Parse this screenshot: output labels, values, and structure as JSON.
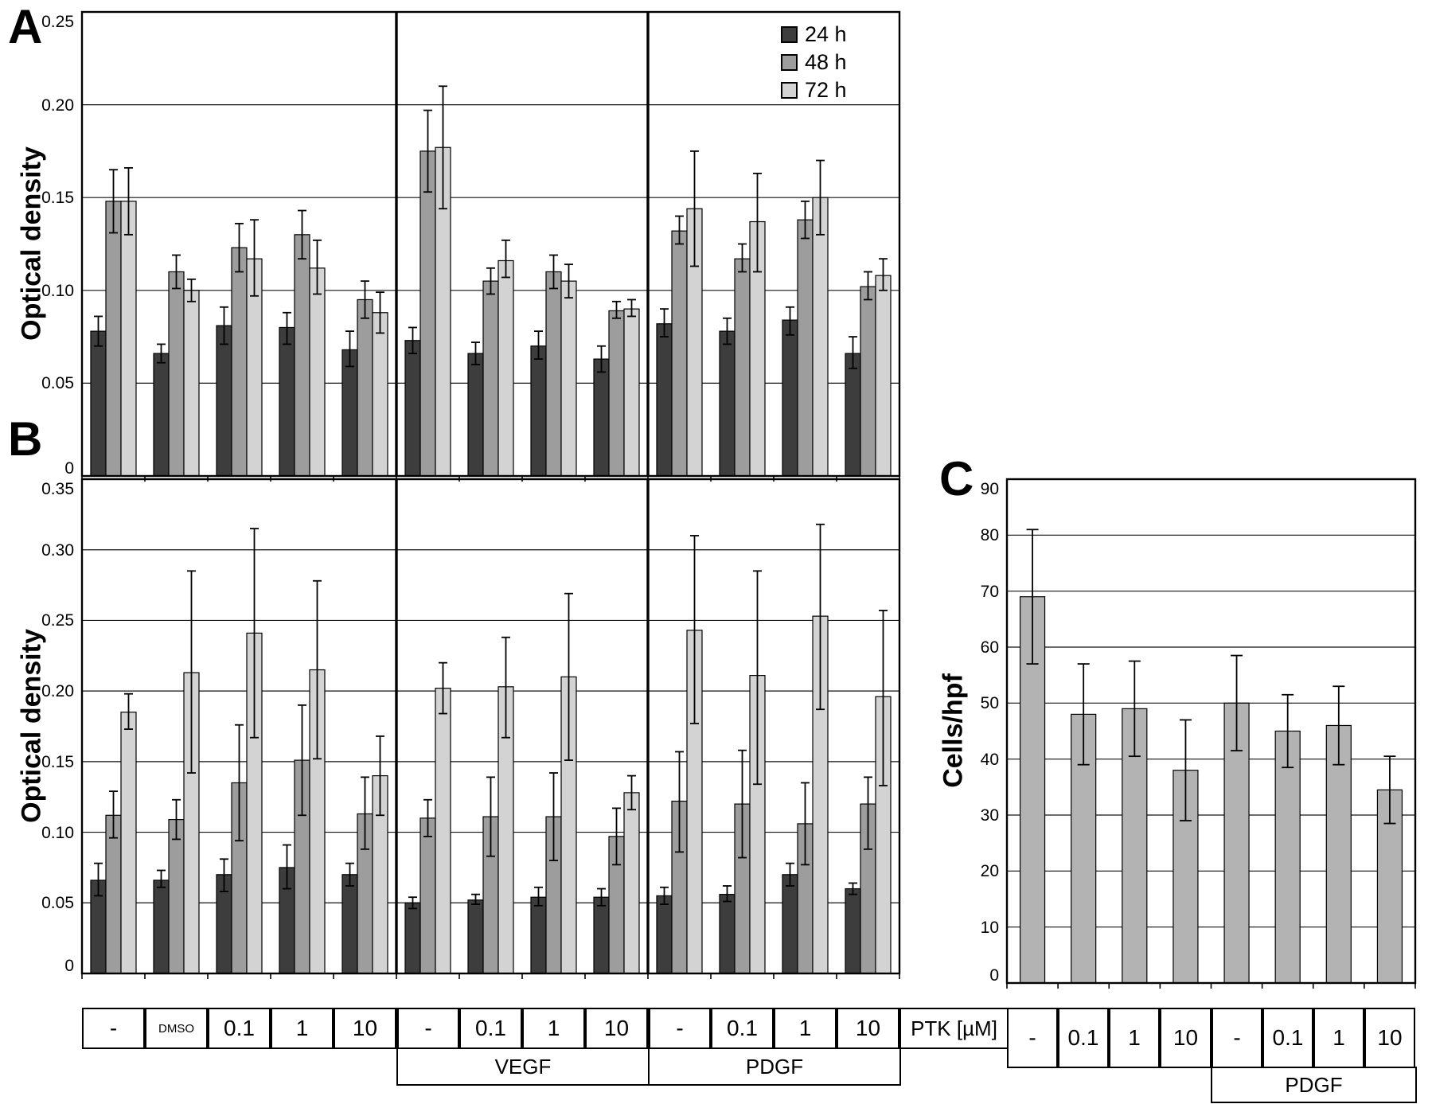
{
  "figure": {
    "panels": [
      "A",
      "B",
      "C"
    ]
  },
  "labels": {
    "ptk": "PTK [µM]"
  },
  "chart_data": [
    {
      "id": "A",
      "type": "bar",
      "title": "",
      "xlabel": "",
      "ylabel": "Optical density",
      "ylim": [
        0,
        0.25
      ],
      "grid": true,
      "legend_position": "top-right",
      "yticks": [
        {
          "v": 0,
          "label": "0"
        },
        {
          "v": 0.05,
          "label": "0.05"
        },
        {
          "v": 0.1,
          "label": "0.10"
        },
        {
          "v": 0.15,
          "label": "0.15"
        },
        {
          "v": 0.2,
          "label": "0.20"
        },
        {
          "v": 0.25,
          "label": "0.25"
        }
      ],
      "categories": [
        "-",
        "DMSO",
        "0.1",
        "1",
        "10",
        "-",
        "0.1",
        "1",
        "10",
        "-",
        "0.1",
        "1",
        "10"
      ],
      "sections": [
        {
          "size": 5
        },
        {
          "size": 4,
          "label": "VEGF"
        },
        {
          "size": 4,
          "label": "PDGF"
        }
      ],
      "series": [
        {
          "name": "24 h",
          "color": "#3d3d3d",
          "values": [
            0.078,
            0.066,
            0.081,
            0.08,
            0.068,
            0.073,
            0.066,
            0.07,
            0.063,
            0.082,
            0.078,
            0.084,
            0.066
          ],
          "err_lo": [
            0.07,
            0.061,
            0.071,
            0.071,
            0.059,
            0.066,
            0.06,
            0.063,
            0.056,
            0.075,
            0.071,
            0.076,
            0.058
          ],
          "err_hi": [
            0.086,
            0.071,
            0.091,
            0.088,
            0.078,
            0.08,
            0.072,
            0.078,
            0.07,
            0.09,
            0.085,
            0.091,
            0.075
          ]
        },
        {
          "name": "48 h",
          "color": "#9d9d9d",
          "values": [
            0.148,
            0.11,
            0.123,
            0.13,
            0.095,
            0.175,
            0.105,
            0.11,
            0.089,
            0.132,
            0.117,
            0.138,
            0.102
          ],
          "err_lo": [
            0.131,
            0.101,
            0.11,
            0.117,
            0.085,
            0.153,
            0.098,
            0.101,
            0.085,
            0.125,
            0.11,
            0.128,
            0.095
          ],
          "err_hi": [
            0.165,
            0.119,
            0.136,
            0.143,
            0.105,
            0.197,
            0.112,
            0.119,
            0.094,
            0.14,
            0.125,
            0.148,
            0.11
          ]
        },
        {
          "name": "72 h",
          "color": "#d3d3d3",
          "values": [
            0.148,
            0.1,
            0.117,
            0.112,
            0.088,
            0.177,
            0.116,
            0.105,
            0.09,
            0.144,
            0.137,
            0.15,
            0.108
          ],
          "err_lo": [
            0.13,
            0.094,
            0.097,
            0.098,
            0.077,
            0.144,
            0.107,
            0.096,
            0.086,
            0.113,
            0.11,
            0.13,
            0.1
          ],
          "err_hi": [
            0.166,
            0.106,
            0.138,
            0.127,
            0.099,
            0.21,
            0.127,
            0.114,
            0.095,
            0.175,
            0.163,
            0.17,
            0.117
          ]
        }
      ]
    },
    {
      "id": "B",
      "type": "bar",
      "title": "",
      "xlabel": "",
      "ylabel": "Optical density",
      "ylim": [
        0,
        0.35
      ],
      "grid": true,
      "yticks": [
        {
          "v": 0,
          "label": "0"
        },
        {
          "v": 0.05,
          "label": "0.05"
        },
        {
          "v": 0.1,
          "label": "0.10"
        },
        {
          "v": 0.15,
          "label": "0.15"
        },
        {
          "v": 0.2,
          "label": "0.20"
        },
        {
          "v": 0.25,
          "label": "0.25"
        },
        {
          "v": 0.3,
          "label": "0.30"
        },
        {
          "v": 0.35,
          "label": "0.35"
        }
      ],
      "categories": [
        "-",
        "DMSO",
        "0.1",
        "1",
        "10",
        "-",
        "0.1",
        "1",
        "10",
        "-",
        "0.1",
        "1",
        "10"
      ],
      "sections": [
        {
          "size": 5
        },
        {
          "size": 4,
          "label": "VEGF"
        },
        {
          "size": 4,
          "label": "PDGF"
        }
      ],
      "series": [
        {
          "name": "24 h",
          "color": "#3d3d3d",
          "values": [
            0.066,
            0.066,
            0.07,
            0.075,
            0.07,
            0.05,
            0.052,
            0.054,
            0.054,
            0.055,
            0.056,
            0.07,
            0.06
          ],
          "err_lo": [
            0.055,
            0.061,
            0.058,
            0.06,
            0.062,
            0.046,
            0.049,
            0.048,
            0.048,
            0.049,
            0.051,
            0.062,
            0.056
          ],
          "err_hi": [
            0.078,
            0.073,
            0.081,
            0.091,
            0.078,
            0.054,
            0.056,
            0.061,
            0.06,
            0.061,
            0.062,
            0.078,
            0.064
          ]
        },
        {
          "name": "48 h",
          "color": "#9d9d9d",
          "values": [
            0.112,
            0.109,
            0.135,
            0.151,
            0.113,
            0.11,
            0.111,
            0.111,
            0.097,
            0.122,
            0.12,
            0.106,
            0.12
          ],
          "err_lo": [
            0.096,
            0.095,
            0.094,
            0.112,
            0.088,
            0.097,
            0.083,
            0.08,
            0.077,
            0.086,
            0.082,
            0.077,
            0.088
          ],
          "err_hi": [
            0.129,
            0.123,
            0.176,
            0.19,
            0.139,
            0.123,
            0.139,
            0.142,
            0.117,
            0.157,
            0.158,
            0.135,
            0.139
          ]
        },
        {
          "name": "72 h",
          "color": "#d3d3d3",
          "values": [
            0.185,
            0.213,
            0.241,
            0.215,
            0.14,
            0.202,
            0.203,
            0.21,
            0.128,
            0.243,
            0.211,
            0.253,
            0.196
          ],
          "err_lo": [
            0.173,
            0.142,
            0.167,
            0.152,
            0.112,
            0.184,
            0.167,
            0.151,
            0.116,
            0.177,
            0.134,
            0.187,
            0.133
          ],
          "err_hi": [
            0.198,
            0.285,
            0.315,
            0.278,
            0.168,
            0.22,
            0.238,
            0.269,
            0.14,
            0.31,
            0.285,
            0.318,
            0.257
          ]
        }
      ]
    },
    {
      "id": "C",
      "type": "bar",
      "title": "",
      "xlabel": "",
      "ylabel": "Cells/hpf",
      "ylim": [
        0,
        90
      ],
      "grid": true,
      "dividers": false,
      "yticks": [
        {
          "v": 0,
          "label": "0"
        },
        {
          "v": 10,
          "label": "10"
        },
        {
          "v": 20,
          "label": "20"
        },
        {
          "v": 30,
          "label": "30"
        },
        {
          "v": 40,
          "label": "40"
        },
        {
          "v": 50,
          "label": "50"
        },
        {
          "v": 60,
          "label": "60"
        },
        {
          "v": 70,
          "label": "70"
        },
        {
          "v": 80,
          "label": "80"
        },
        {
          "v": 90,
          "label": "90"
        }
      ],
      "categories": [
        "-",
        "0.1",
        "1",
        "10",
        "-",
        "0.1",
        "1",
        "10"
      ],
      "sections": [
        {
          "size": 4
        },
        {
          "size": 4,
          "label": "PDGF"
        }
      ],
      "series": [
        {
          "color": "#b3b3b3",
          "values": [
            69,
            48,
            49,
            38,
            50,
            45,
            46,
            34.5
          ],
          "err_lo": [
            57,
            39,
            40.5,
            29,
            41.5,
            38.5,
            39,
            28.5
          ],
          "err_hi": [
            81,
            57,
            57.5,
            47,
            58.5,
            51.5,
            53,
            40.5
          ]
        }
      ]
    }
  ]
}
